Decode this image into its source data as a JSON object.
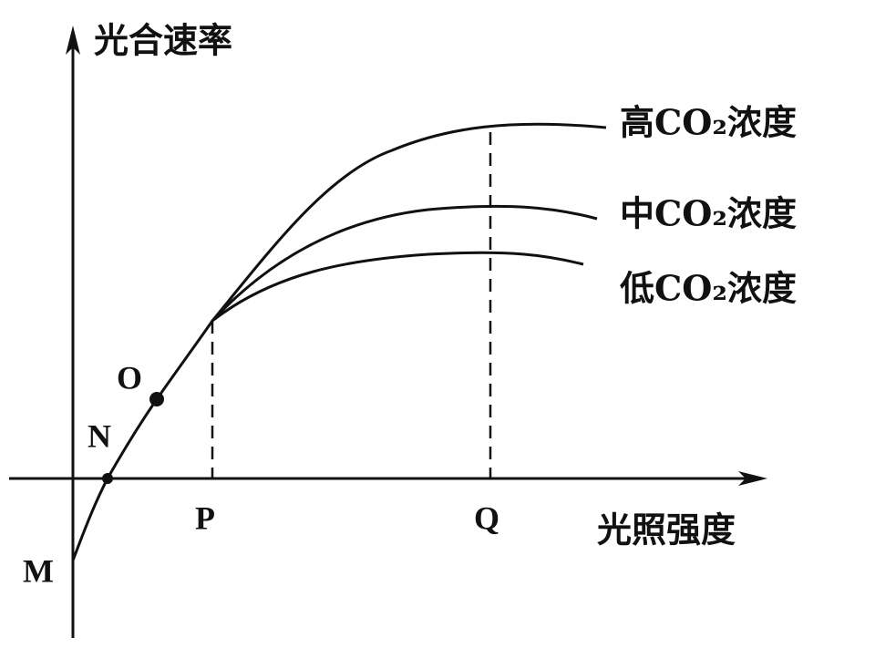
{
  "axes": {
    "y_label": "光合速率",
    "x_label": "光照强度"
  },
  "points": [
    "M",
    "N",
    "O",
    "P",
    "Q"
  ],
  "curves": [
    {
      "label": "高CO₂浓度"
    },
    {
      "label": "中CO₂浓度"
    },
    {
      "label": "低CO₂浓度"
    }
  ]
}
